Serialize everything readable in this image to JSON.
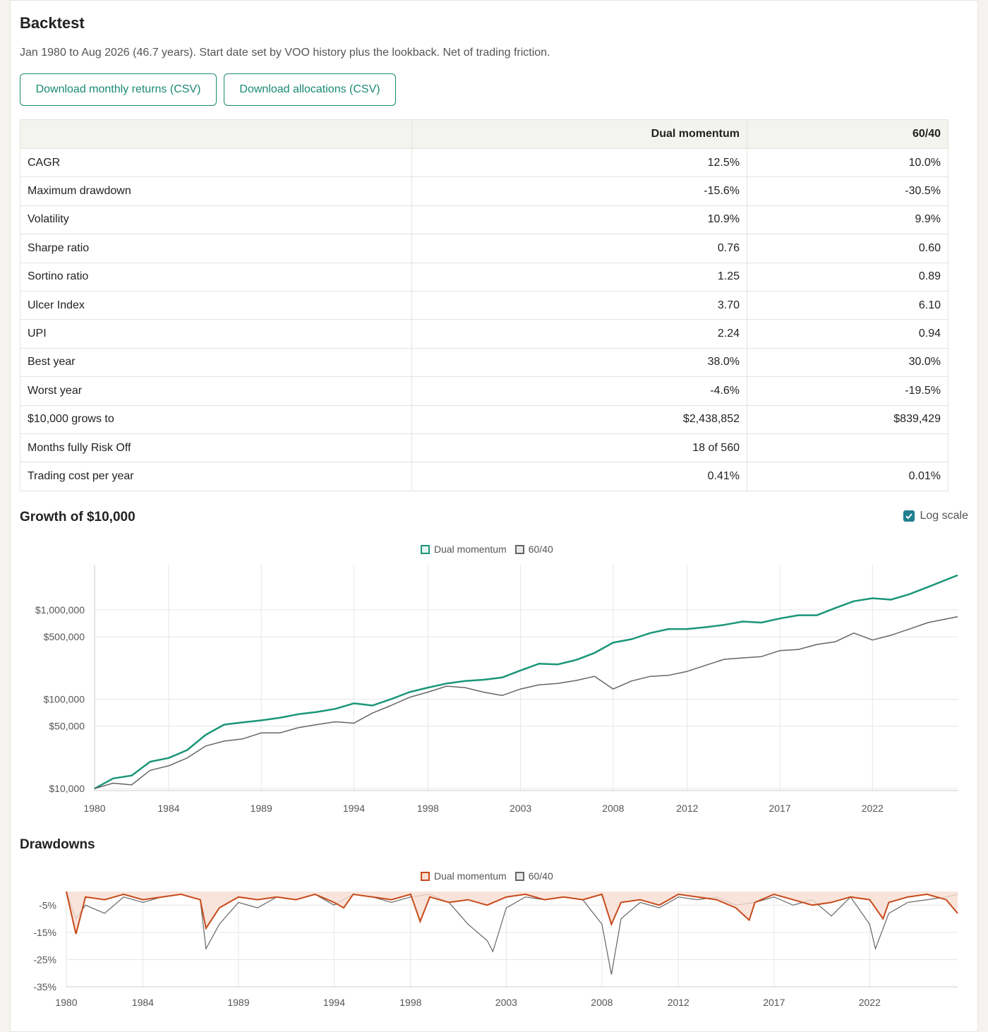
{
  "header": {
    "title": "Backtest",
    "subtitle": "Jan 1980 to Aug 2026 (46.7 years). Start date set by VOO history plus the lookback. Net of trading friction."
  },
  "buttons": {
    "download_returns": "Download monthly returns (CSV)",
    "download_allocations": "Download allocations (CSV)"
  },
  "stats_table": {
    "columns": [
      "",
      "Dual momentum",
      "60/40"
    ],
    "rows": [
      {
        "label": "CAGR",
        "dm": "12.5%",
        "bench": "10.0%"
      },
      {
        "label": "Maximum drawdown",
        "dm": "-15.6%",
        "bench": "-30.5%"
      },
      {
        "label": "Volatility",
        "dm": "10.9%",
        "bench": "9.9%"
      },
      {
        "label": "Sharpe ratio",
        "dm": "0.76",
        "bench": "0.60"
      },
      {
        "label": "Sortino ratio",
        "dm": "1.25",
        "bench": "0.89"
      },
      {
        "label": "Ulcer Index",
        "dm": "3.70",
        "bench": "6.10"
      },
      {
        "label": "UPI",
        "dm": "2.24",
        "bench": "0.94"
      },
      {
        "label": "Best year",
        "dm": "38.0%",
        "bench": "30.0%"
      },
      {
        "label": "Worst year",
        "dm": "-4.6%",
        "bench": "-19.5%"
      },
      {
        "label": "$10,000 grows to",
        "dm": "$2,438,852",
        "bench": "$839,429"
      },
      {
        "label": "Months fully Risk Off",
        "dm": "18 of 560",
        "bench": ""
      },
      {
        "label": "Trading cost per year",
        "dm": "0.41%",
        "bench": "0.01%"
      }
    ]
  },
  "growth_section": {
    "title": "Growth of $10,000",
    "log_scale_label": "Log scale",
    "log_scale_checked": true
  },
  "drawdown_section": {
    "title": "Drawdowns"
  },
  "colors": {
    "dual_momentum": "#1a9678",
    "bench": "#666666",
    "drawdown_dm": "#c84a1a",
    "drawdown_fill": "#f8ddd2"
  },
  "chart_data": [
    {
      "type": "line",
      "scale": "log",
      "series": [
        {
          "name": "Dual momentum",
          "x": [
            1980,
            1981,
            1982,
            1983,
            1984,
            1985,
            1986,
            1987,
            1988,
            1989,
            1990,
            1991,
            1992,
            1993,
            1994,
            1995,
            1996,
            1997,
            1998,
            1999,
            2000,
            2001,
            2002,
            2003,
            2004,
            2005,
            2006,
            2007,
            2008,
            2009,
            2010,
            2011,
            2012,
            2013,
            2014,
            2015,
            2016,
            2017,
            2018,
            2019,
            2020,
            2021,
            2022,
            2023,
            2024,
            2025,
            2026.6
          ],
          "y": [
            10000,
            13000,
            14000,
            20000,
            22000,
            27000,
            40000,
            52000,
            55000,
            58000,
            62000,
            68000,
            72000,
            78000,
            90000,
            85000,
            100000,
            120000,
            135000,
            150000,
            160000,
            165000,
            175000,
            210000,
            250000,
            245000,
            275000,
            330000,
            430000,
            470000,
            550000,
            610000,
            610000,
            640000,
            680000,
            740000,
            720000,
            800000,
            870000,
            870000,
            1050000,
            1250000,
            1350000,
            1300000,
            1500000,
            1800000,
            2438852
          ]
        },
        {
          "name": "60/40",
          "x": [
            1980,
            1981,
            1982,
            1983,
            1984,
            1985,
            1986,
            1987,
            1988,
            1989,
            1990,
            1991,
            1992,
            1993,
            1994,
            1995,
            1996,
            1997,
            1998,
            1999,
            2000,
            2001,
            2002,
            2003,
            2004,
            2005,
            2006,
            2007,
            2008,
            2009,
            2010,
            2011,
            2012,
            2013,
            2014,
            2015,
            2016,
            2017,
            2018,
            2019,
            2020,
            2021,
            2022,
            2023,
            2024,
            2025,
            2026.6
          ],
          "y": [
            10000,
            11500,
            11000,
            16000,
            18000,
            22000,
            30000,
            34000,
            36000,
            42000,
            42000,
            48000,
            52000,
            56000,
            54000,
            70000,
            85000,
            105000,
            120000,
            140000,
            135000,
            120000,
            110000,
            130000,
            145000,
            150000,
            162000,
            180000,
            130000,
            160000,
            180000,
            185000,
            205000,
            240000,
            280000,
            290000,
            300000,
            350000,
            360000,
            410000,
            440000,
            550000,
            460000,
            520000,
            610000,
            720000,
            839429
          ]
        }
      ],
      "y_ticks": [
        "$10,000",
        "$50,000",
        "$100,000",
        "$500,000",
        "$1,000,000"
      ],
      "x_ticks": [
        "1980",
        "1984",
        "1989",
        "1994",
        "1998",
        "2003",
        "2008",
        "2012",
        "2017",
        "2022"
      ]
    },
    {
      "type": "area",
      "series": [
        {
          "name": "Dual momentum",
          "x": [
            1980,
            1980.5,
            1981,
            1982,
            1983,
            1984,
            1985,
            1986,
            1987,
            1987.3,
            1988,
            1989,
            1990,
            1991,
            1992,
            1993,
            1994,
            1994.5,
            1995,
            1996,
            1997,
            1998,
            1998.5,
            1999,
            2000,
            2001,
            2002,
            2003,
            2004,
            2005,
            2006,
            2007,
            2008,
            2008.5,
            2009,
            2010,
            2011,
            2012,
            2013,
            2014,
            2015,
            2015.7,
            2016,
            2017,
            2018,
            2019,
            2020,
            2021,
            2022,
            2022.7,
            2023,
            2024,
            2025,
            2026,
            2026.6
          ],
          "y": [
            0,
            -15.6,
            -2,
            -3,
            -1,
            -3,
            -2,
            -1,
            -3,
            -13.5,
            -6,
            -2,
            -3,
            -2,
            -3,
            -1,
            -4,
            -6,
            -1,
            -2,
            -3,
            -1,
            -11,
            -2,
            -4,
            -3,
            -5,
            -2,
            -1,
            -3,
            -2,
            -3,
            -1,
            -12,
            -4,
            -3,
            -5,
            -1,
            -2,
            -3,
            -6,
            -10.5,
            -4,
            -1,
            -3,
            -5,
            -4,
            -2,
            -3,
            -10,
            -4,
            -2,
            -1,
            -3,
            -8
          ]
        },
        {
          "name": "60/40",
          "x": [
            1980,
            1980.5,
            1981,
            1982,
            1983,
            1984,
            1985,
            1986,
            1987,
            1987.3,
            1988,
            1989,
            1990,
            1991,
            1992,
            1993,
            1994,
            1995,
            1996,
            1997,
            1998,
            1999,
            2000,
            2001,
            2002,
            2002.3,
            2003,
            2004,
            2005,
            2006,
            2007,
            2008,
            2008.5,
            2009,
            2010,
            2011,
            2012,
            2013,
            2014,
            2015,
            2016,
            2017,
            2018,
            2019,
            2020,
            2021,
            2022,
            2022.3,
            2023,
            2024,
            2025,
            2026,
            2026.6
          ],
          "y": [
            0,
            -10,
            -5,
            -8,
            -2,
            -4,
            -2,
            -1,
            -3,
            -21,
            -12,
            -4,
            -6,
            -2,
            -3,
            -1,
            -5,
            -1,
            -2,
            -4,
            -2,
            -1,
            -4,
            -12,
            -18,
            -22,
            -6,
            -2,
            -3,
            -2,
            -3,
            -12,
            -30.5,
            -10,
            -4,
            -6,
            -2,
            -3,
            -2,
            -5,
            -4,
            -2,
            -5,
            -3,
            -9,
            -2,
            -12,
            -21,
            -8,
            -4,
            -3,
            -2,
            -1
          ]
        }
      ],
      "y_ticks": [
        "-5%",
        "-15%",
        "-25%",
        "-35%"
      ],
      "x_ticks": [
        "1980",
        "1984",
        "1989",
        "1994",
        "1998",
        "2003",
        "2008",
        "2012",
        "2017",
        "2022"
      ]
    }
  ]
}
